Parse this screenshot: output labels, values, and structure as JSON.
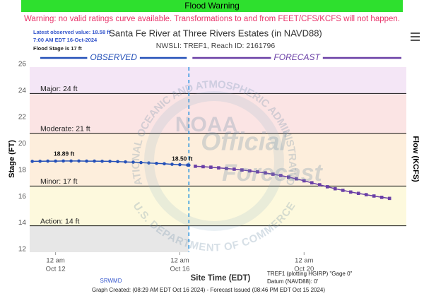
{
  "banner": {
    "title": "Flood Warning",
    "warning": "Warning: no valid ratings curve available. Transformations to and from FEET/CFS/KCFS will not happen."
  },
  "info": {
    "latest": "Latest observed value: 18.58 ft",
    "time": "7:00 AM EDT 16-Oct-2024",
    "flood_stage": "Flood Stage is 17 ft"
  },
  "chart_data": {
    "type": "line",
    "title": "Santa Fe River at Three Rivers Estates (in NAVD88)",
    "subtitle": "NWSLI: TREF1, Reach ID: 2161796",
    "x_label": "Site Time (EDT)",
    "y_label": "Stage (FT)",
    "y2_label": "Flow (KCFS)",
    "xlim": [
      "2024-10-11T04:00",
      "2024-10-23T07:00"
    ],
    "xticks": [
      {
        "value": "2024-10-12T00:00",
        "label": [
          "12 am",
          "Oct 12"
        ]
      },
      {
        "value": "2024-10-16T00:00",
        "label": [
          "12 am",
          "Oct 16"
        ]
      },
      {
        "value": "2024-10-20T00:00",
        "label": [
          "12 am",
          "Oct 20"
        ]
      }
    ],
    "ylim": [
      12,
      26
    ],
    "yticks": [
      12,
      14,
      16,
      18,
      20,
      22,
      24,
      26
    ],
    "now": "2024-10-16T07:00",
    "thresholds": [
      {
        "label": "Action: 14 ft",
        "value": 14,
        "color": "#fdf9dd"
      },
      {
        "label": "Minor: 17 ft",
        "value": 17,
        "color": "#fdeedc"
      },
      {
        "label": "Moderate: 21 ft",
        "value": 21,
        "color": "#fbe4e4"
      },
      {
        "label": "Major: 24 ft",
        "value": 24,
        "color": "#f4e6f6"
      }
    ],
    "series": [
      {
        "name": "OBSERVED",
        "color": "#2450b8",
        "marker": "circle",
        "x": [
          "2024-10-11T06:00",
          "2024-10-11T12:00",
          "2024-10-11T18:00",
          "2024-10-12T00:00",
          "2024-10-12T06:00",
          "2024-10-12T12:00",
          "2024-10-12T18:00",
          "2024-10-13T00:00",
          "2024-10-13T06:00",
          "2024-10-13T12:00",
          "2024-10-13T18:00",
          "2024-10-14T00:00",
          "2024-10-14T06:00",
          "2024-10-14T12:00",
          "2024-10-14T18:00",
          "2024-10-15T00:00",
          "2024-10-15T06:00",
          "2024-10-15T12:00",
          "2024-10-15T18:00",
          "2024-10-16T00:00",
          "2024-10-16T06:00",
          "2024-10-16T07:00"
        ],
        "values": [
          18.87,
          18.88,
          18.89,
          18.89,
          18.9,
          18.9,
          18.9,
          18.89,
          18.89,
          18.88,
          18.87,
          18.85,
          18.83,
          18.81,
          18.78,
          18.75,
          18.72,
          18.69,
          18.65,
          18.62,
          18.59,
          18.58
        ],
        "value_labels": [
          null,
          null,
          null,
          "18.89 ft",
          null,
          null,
          null,
          null,
          null,
          null,
          null,
          null,
          null,
          null,
          null,
          null,
          null,
          null,
          null,
          null,
          null,
          null
        ]
      },
      {
        "name": "FORECAST",
        "color": "#6a3fa6",
        "marker": "square",
        "x": [
          "2024-10-16T12:00",
          "2024-10-16T18:00",
          "2024-10-17T00:00",
          "2024-10-17T06:00",
          "2024-10-17T12:00",
          "2024-10-17T18:00",
          "2024-10-18T00:00",
          "2024-10-18T06:00",
          "2024-10-18T12:00",
          "2024-10-18T18:00",
          "2024-10-19T00:00",
          "2024-10-19T06:00",
          "2024-10-19T12:00",
          "2024-10-19T18:00",
          "2024-10-20T00:00",
          "2024-10-20T06:00",
          "2024-10-20T12:00",
          "2024-10-20T18:00",
          "2024-10-21T00:00",
          "2024-10-21T06:00",
          "2024-10-21T12:00",
          "2024-10-21T18:00",
          "2024-10-22T00:00",
          "2024-10-22T06:00",
          "2024-10-22T12:00",
          "2024-10-22T18:00"
        ],
        "values": [
          18.5,
          18.47,
          18.43,
          18.38,
          18.33,
          18.28,
          18.22,
          18.15,
          18.08,
          18.0,
          17.9,
          17.8,
          17.68,
          17.55,
          17.4,
          17.25,
          17.1,
          16.95,
          16.8,
          16.68,
          16.55,
          16.45,
          16.35,
          16.25,
          16.15,
          16.07
        ],
        "value_labels": [
          "18.50 ft",
          null,
          null,
          null,
          null,
          null,
          null,
          null,
          null,
          null,
          null,
          null,
          null,
          null,
          null,
          null,
          null,
          null,
          null,
          null,
          null,
          null,
          null,
          null,
          null,
          null
        ]
      }
    ],
    "watermark": {
      "logo": "NOAA",
      "line1": "Official",
      "line2": "Forecast",
      "arc_top": "NATIONAL OCEANIC AND ATMOSPHERIC ADMINISTRATION",
      "arc_bottom": "U.S. DEPARTMENT OF COMMERCE"
    }
  },
  "footer": {
    "source": "SRWMD",
    "gage": "TREF1 (plotting HGIRP) \"Gage 0\"",
    "datum": "Datum (NAVD88): 0'",
    "created": "Graph Created: (08:29 AM EDT Oct 16 2024) - Forecast Issued (08:46 PM EDT Oct 15 2024)"
  }
}
